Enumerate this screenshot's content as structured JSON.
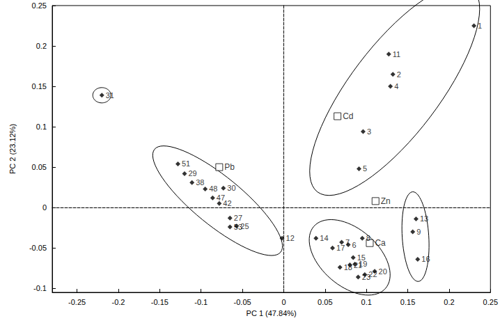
{
  "chart_data": {
    "type": "scatter",
    "x_label": "PC 1 (47.84%)",
    "y_label": "PC 2 (23.12%)",
    "xlim": [
      -0.28,
      0.25
    ],
    "xticks": [
      -0.25,
      -0.2,
      -0.15,
      -0.1,
      -0.05,
      0,
      0.05,
      0.1,
      0.15,
      0.2,
      0.25
    ],
    "ylim": [
      -0.105,
      0.25
    ],
    "yticks": [
      -0.1,
      -0.05,
      0,
      0.05,
      0.1,
      0.15,
      0.2,
      0.25
    ],
    "grid": false,
    "series": [
      {
        "marker": "diamond",
        "color": "#000000",
        "labels": [
          "1",
          "11",
          "2",
          "4",
          "3",
          "5"
        ],
        "x": [
          0.23,
          0.127,
          0.132,
          0.129,
          0.096,
          0.091
        ],
        "y": [
          0.225,
          0.19,
          0.165,
          0.15,
          0.094,
          0.048
        ]
      },
      {
        "marker": "diamond",
        "color": "#000000",
        "labels": [
          "13",
          "9",
          "16"
        ],
        "x": [
          0.16,
          0.156,
          0.162
        ],
        "y": [
          -0.014,
          -0.03,
          -0.064
        ]
      },
      {
        "marker": "diamond",
        "color": "#000000",
        "labels": [
          "14",
          "7",
          "6",
          "17",
          "8",
          "15",
          "18",
          "19",
          "20",
          "21",
          "22",
          "23"
        ],
        "x": [
          0.039,
          0.07,
          0.078,
          0.059,
          0.095,
          0.084,
          0.068,
          0.086,
          0.11,
          0.08,
          0.098,
          0.09
        ],
        "y": [
          -0.038,
          -0.043,
          -0.046,
          -0.05,
          -0.038,
          -0.062,
          -0.074,
          -0.07,
          -0.079,
          -0.071,
          -0.083,
          -0.086
        ]
      },
      {
        "marker": "diamond",
        "color": "#000000",
        "labels": [
          "31"
        ],
        "x": [
          -0.22
        ],
        "y": [
          0.139
        ]
      },
      {
        "marker": "diamond",
        "color": "#000000",
        "labels": [
          "51",
          "29",
          "38",
          "48",
          "30",
          "47",
          "42",
          "27",
          "25",
          "53",
          "12"
        ],
        "x": [
          -0.128,
          -0.12,
          -0.111,
          -0.095,
          -0.073,
          -0.086,
          -0.078,
          -0.065,
          -0.057,
          -0.065,
          -0.002
        ],
        "y": [
          0.054,
          0.042,
          0.031,
          0.023,
          0.024,
          0.012,
          0.005,
          -0.013,
          -0.023,
          -0.024,
          -0.038
        ]
      },
      {
        "marker": "square",
        "color": "#000000",
        "labels": [
          "Cd",
          "Pb",
          "Zn",
          "Ca"
        ],
        "x": [
          0.065,
          -0.078,
          0.111,
          0.104
        ],
        "y": [
          0.113,
          0.05,
          0.008,
          -0.044
        ]
      }
    ]
  }
}
